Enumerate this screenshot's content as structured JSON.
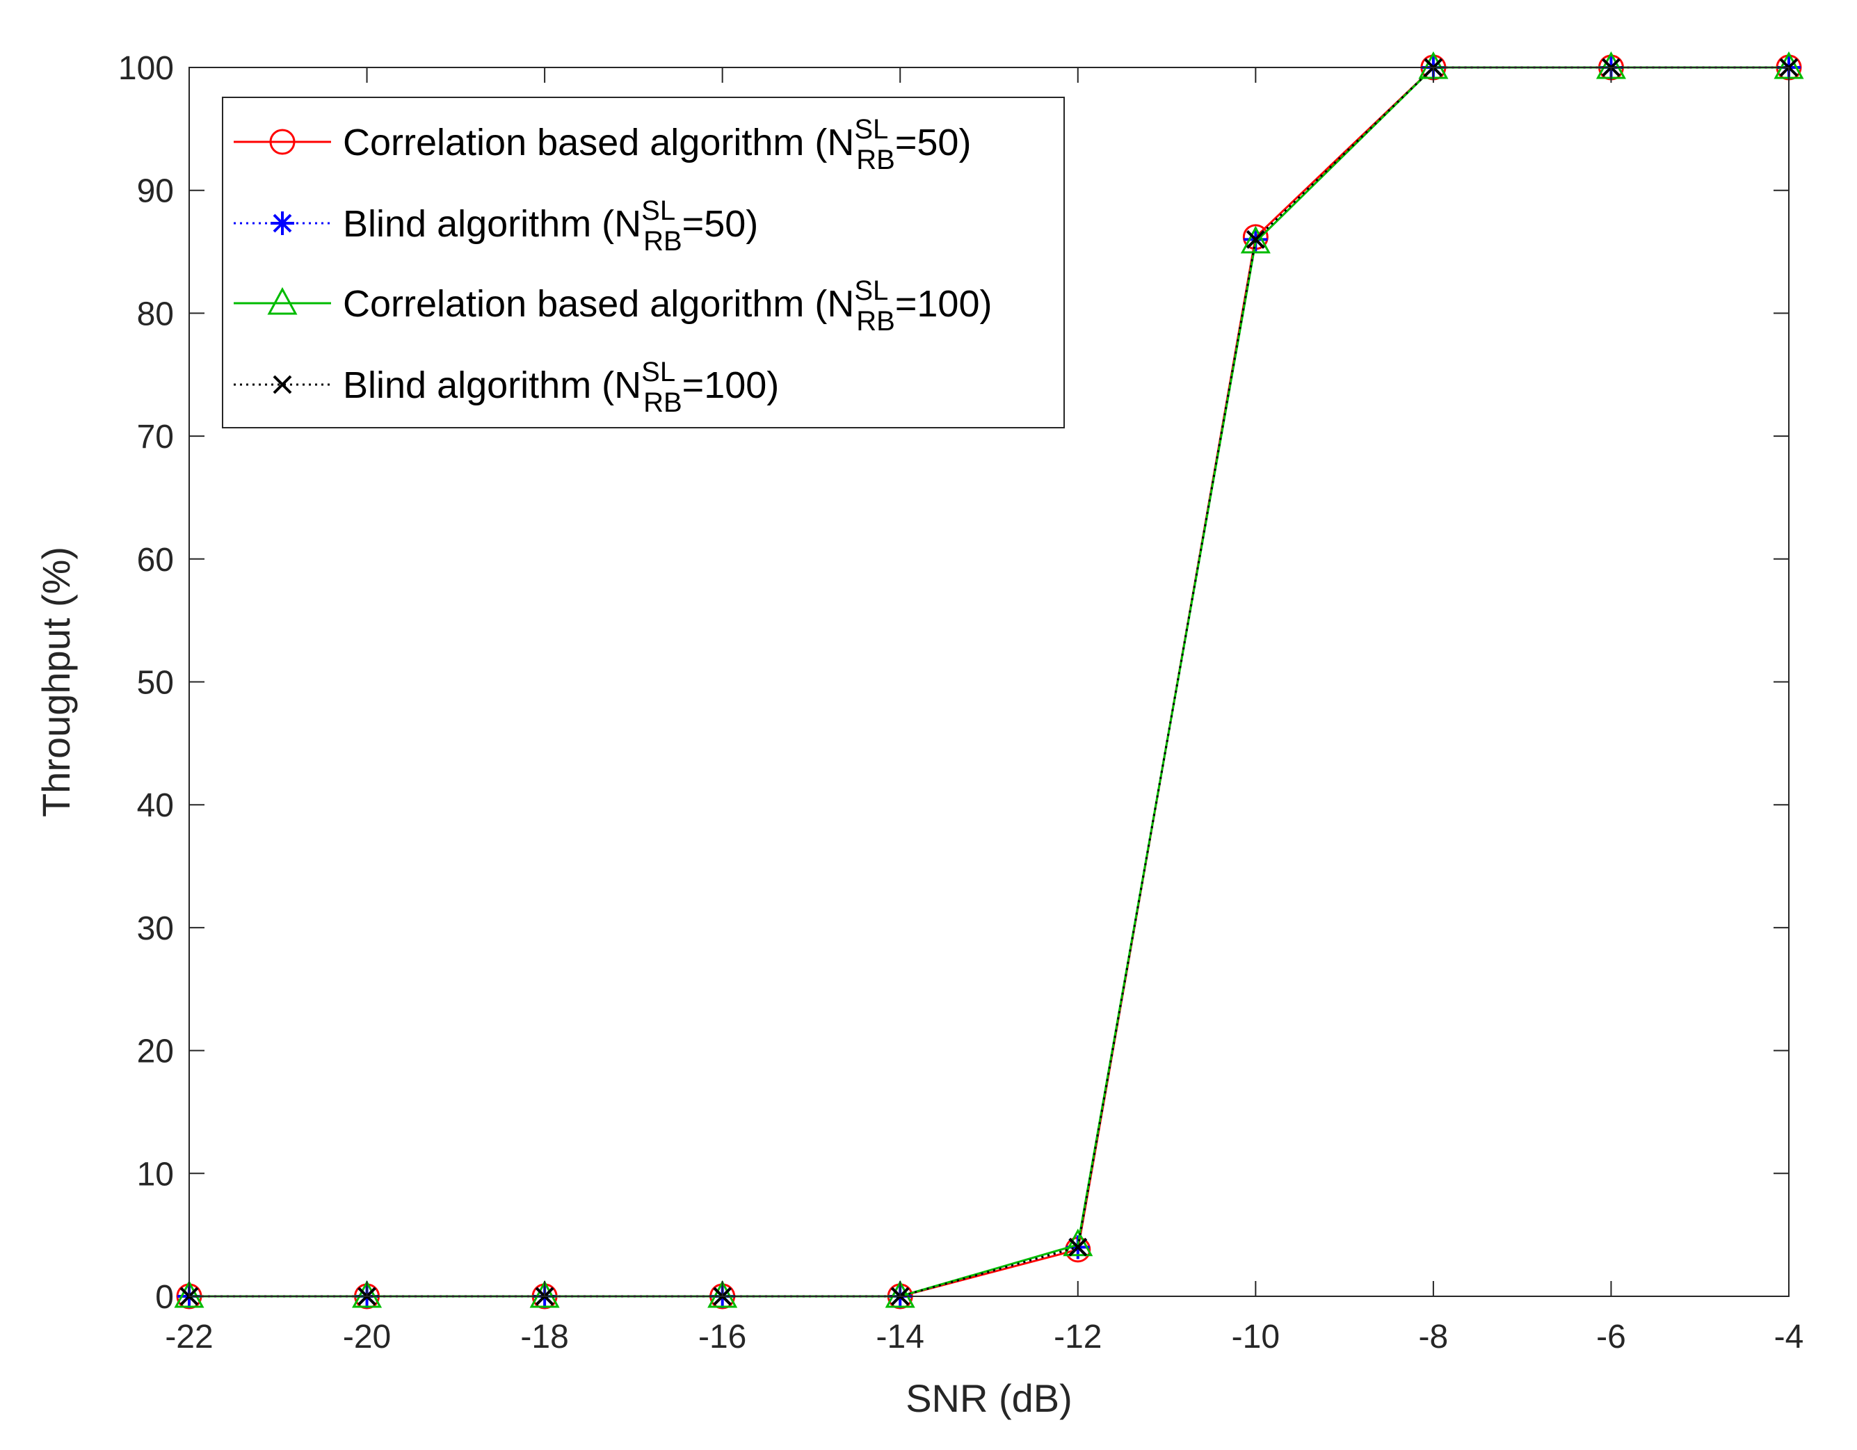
{
  "chart_data": {
    "type": "line",
    "title": "",
    "xlabel": "SNR (dB)",
    "ylabel": "Throughput (%)",
    "xlim": [
      -22,
      -4
    ],
    "ylim": [
      0,
      100
    ],
    "xticks": [
      -22,
      -20,
      -18,
      -16,
      -14,
      -12,
      -10,
      -8,
      -6,
      -4
    ],
    "yticks": [
      0,
      10,
      20,
      30,
      40,
      50,
      60,
      70,
      80,
      90,
      100
    ],
    "grid": false,
    "legend_position": "top-left",
    "x": [
      -22,
      -20,
      -18,
      -16,
      -14,
      -12,
      -10,
      -8,
      -6,
      -4
    ],
    "series": [
      {
        "legend_prefix": "Correlation based algorithm (N",
        "legend_sup": "SL",
        "legend_sub": "RB",
        "legend_suffix": "=50)",
        "color": "#ff0000",
        "line_style": "solid",
        "marker": "circle",
        "values": [
          0,
          0,
          0,
          0,
          0,
          3.8,
          86.2,
          100,
          100,
          100
        ]
      },
      {
        "legend_prefix": "Blind algorithm (N",
        "legend_sup": "SL",
        "legend_sub": "RB",
        "legend_suffix": "=50)",
        "color": "#0000ff",
        "line_style": "dotted",
        "marker": "asterisk",
        "values": [
          0,
          0,
          0,
          0,
          0,
          4.0,
          86.0,
          100,
          100,
          100
        ]
      },
      {
        "legend_prefix": "Correlation based algorithm (N",
        "legend_sup": "SL",
        "legend_sub": "RB",
        "legend_suffix": "=100)",
        "color": "#00bb00",
        "line_style": "solid",
        "marker": "triangle",
        "values": [
          0,
          0,
          0,
          0,
          0,
          4.2,
          85.8,
          100,
          100,
          100
        ]
      },
      {
        "legend_prefix": "Blind algorithm (N",
        "legend_sup": "SL",
        "legend_sub": "RB",
        "legend_suffix": "=100)",
        "color": "#000000",
        "line_style": "dotted",
        "marker": "x",
        "values": [
          0,
          0,
          0,
          0,
          0,
          4.0,
          86.0,
          100,
          100,
          100
        ]
      }
    ]
  }
}
